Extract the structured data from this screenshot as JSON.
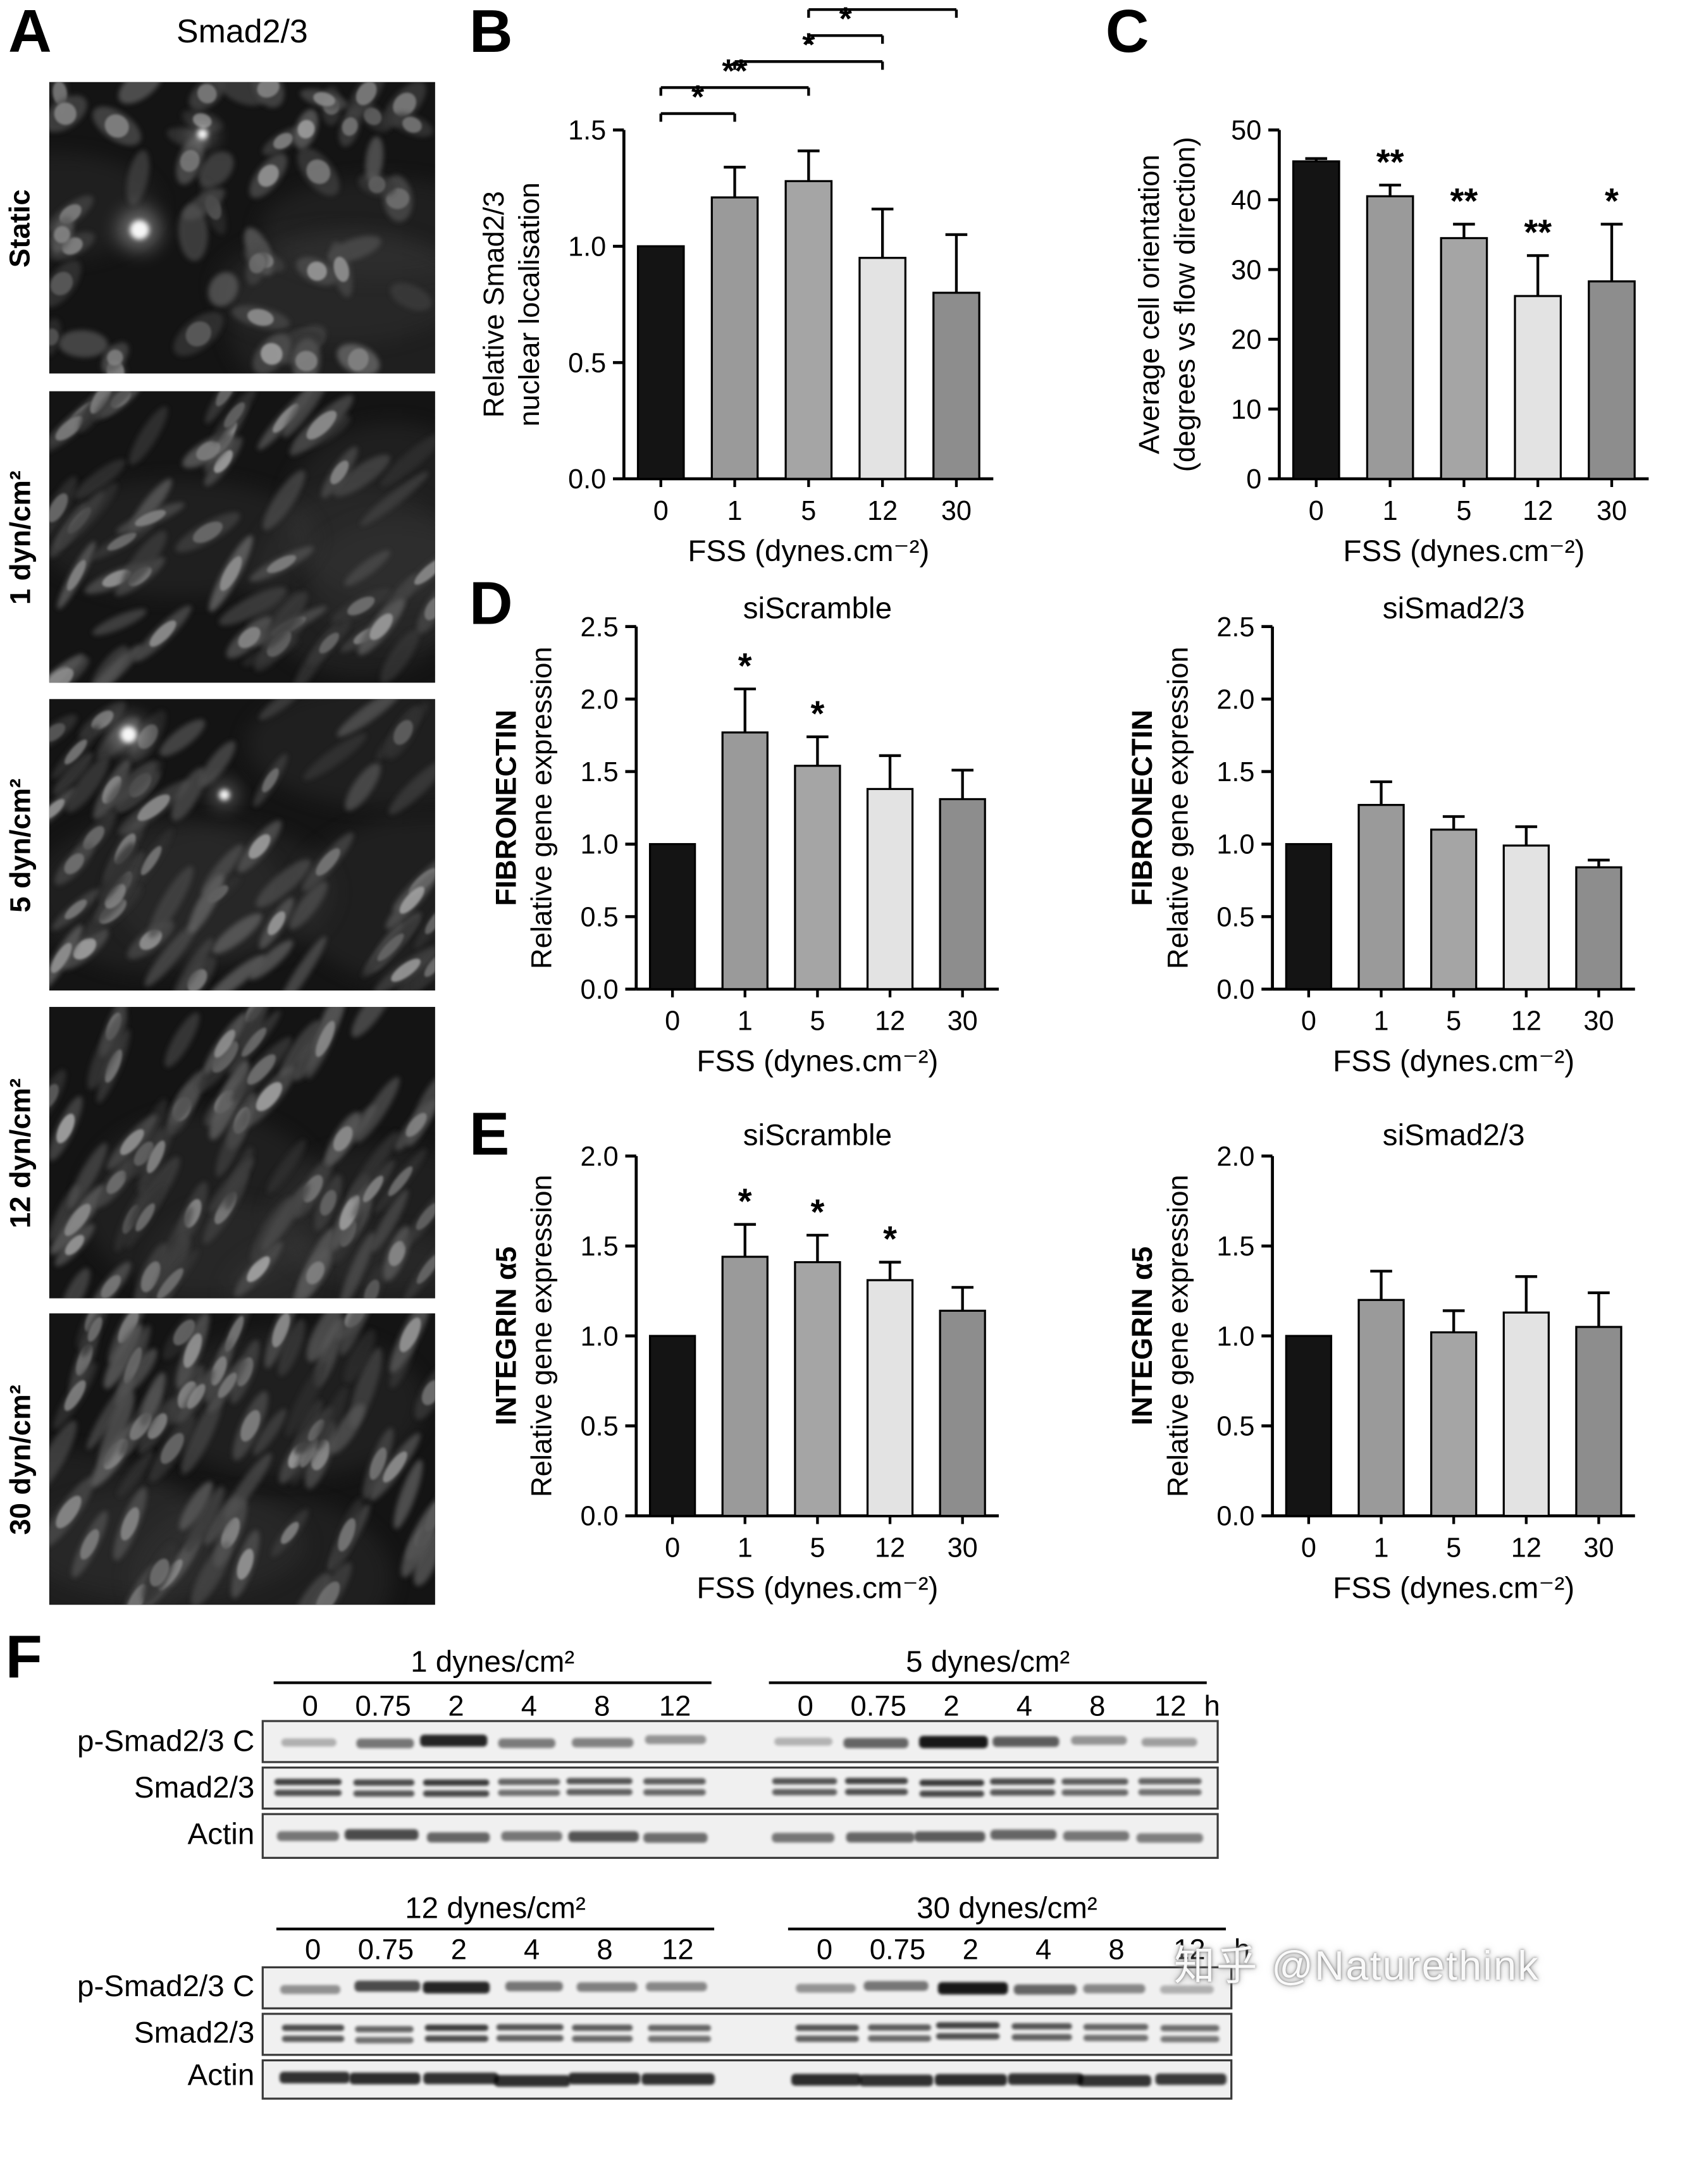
{
  "colors": {
    "bars": [
      "#141414",
      "#9a9a9a",
      "#a5a5a5",
      "#e3e3e3",
      "#8d8d8d"
    ],
    "axis": "#000000"
  },
  "watermark": "知乎 @Naturethink",
  "panelA": {
    "label": "A",
    "title": "Smad2/3",
    "row_labels": [
      "Static",
      "1 dyn/cm²",
      "5 dyn/cm²",
      "12 dyn/cm²",
      "30 dyn/cm²"
    ]
  },
  "panelB": {
    "label": "B"
  },
  "panelC": {
    "label": "C"
  },
  "panelD": {
    "label": "D"
  },
  "panelE": {
    "label": "E"
  },
  "panelF": {
    "label": "F",
    "sets": [
      {
        "groups": [
          {
            "title": "1 dynes/cm²",
            "lanes": [
              "0",
              "0.75",
              "2",
              "4",
              "8",
              "12"
            ]
          },
          {
            "title": "5 dynes/cm²",
            "lanes": [
              "0",
              "0.75",
              "2",
              "4",
              "8",
              "12"
            ]
          }
        ],
        "time_unit": "h",
        "rows": [
          {
            "label": "p-Smad2/3 C",
            "double": false,
            "bands": [
              [
                0.12,
                0.45,
                0.92,
                0.42,
                0.38,
                0.28
              ],
              [
                0.1,
                0.55,
                1.0,
                0.6,
                0.28,
                0.22
              ]
            ]
          },
          {
            "label": "Smad2/3",
            "double": true,
            "bands": [
              [
                0.75,
                0.7,
                0.8,
                0.55,
                0.65,
                0.6
              ],
              [
                0.65,
                0.75,
                0.8,
                0.7,
                0.6,
                0.55
              ]
            ]
          },
          {
            "label": "Actin",
            "double": false,
            "bands": [
              [
                0.45,
                0.7,
                0.55,
                0.45,
                0.65,
                0.5
              ],
              [
                0.45,
                0.55,
                0.6,
                0.55,
                0.45,
                0.4
              ]
            ]
          }
        ]
      },
      {
        "groups": [
          {
            "title": "12 dynes/cm²",
            "lanes": [
              "0",
              "0.75",
              "2",
              "4",
              "8",
              "12"
            ]
          },
          {
            "title": "30 dynes/cm²",
            "lanes": [
              "0",
              "0.75",
              "2",
              "4",
              "8",
              "12"
            ]
          }
        ],
        "time_unit": "h",
        "rows": [
          {
            "label": "p-Smad2/3 C",
            "double": false,
            "bands": [
              [
                0.3,
                0.7,
                0.92,
                0.45,
                0.4,
                0.35
              ],
              [
                0.28,
                0.45,
                1.0,
                0.55,
                0.35,
                0.12
              ]
            ]
          },
          {
            "label": "Smad2/3",
            "double": true,
            "bands": [
              [
                0.7,
                0.55,
                0.78,
                0.65,
                0.6,
                0.55
              ],
              [
                0.65,
                0.6,
                0.75,
                0.65,
                0.55,
                0.5
              ]
            ]
          },
          {
            "label": "Actin",
            "double": false,
            "bands": [
              [
                0.85,
                0.88,
                0.85,
                0.86,
                0.88,
                0.85
              ],
              [
                0.88,
                0.85,
                0.88,
                0.85,
                0.84,
                0.8
              ]
            ]
          }
        ]
      }
    ]
  },
  "chart_data": [
    {
      "id": "smad23-nuclear-localisation",
      "type": "bar",
      "title": "",
      "categories": [
        "0",
        "1",
        "5",
        "12",
        "30"
      ],
      "values": [
        1.0,
        1.21,
        1.28,
        0.95,
        0.8
      ],
      "errors": [
        0,
        0.13,
        0.13,
        0.21,
        0.25
      ],
      "stars": [
        "",
        "",
        "",
        "",
        ""
      ],
      "ylabel_lines": [
        "Relative Smad2/3",
        "nuclear localisation"
      ],
      "ylabel_bold_first": false,
      "xlabel": "FSS (dynes.cm⁻²)",
      "ylim": [
        0,
        1.5
      ],
      "yticks": [
        0,
        0.5,
        1.0,
        1.5
      ],
      "ytick_labels": [
        "0.0",
        "0.5",
        "1.0",
        "1.5"
      ],
      "sig_brackets": [
        {
          "a": 0,
          "b": 1,
          "label": "*"
        },
        {
          "a": 0,
          "b": 2,
          "label": "**"
        },
        {
          "a": 1,
          "b": 3,
          "label": "*"
        },
        {
          "a": 2,
          "b": 3,
          "label": "*"
        },
        {
          "a": 2,
          "b": 4,
          "label": "*"
        }
      ]
    },
    {
      "id": "average-cell-orientation",
      "type": "bar",
      "title": "",
      "categories": [
        "0",
        "1",
        "5",
        "12",
        "30"
      ],
      "values": [
        45.5,
        40.5,
        34.5,
        26.2,
        28.3
      ],
      "errors": [
        0.4,
        1.6,
        2.0,
        5.8,
        8.2
      ],
      "stars": [
        "",
        "**",
        "**",
        "**",
        "*"
      ],
      "ylabel_lines": [
        "Average cell orientation",
        "(degrees vs flow direction)"
      ],
      "ylabel_bold_first": false,
      "xlabel": "FSS (dynes.cm⁻²)",
      "ylim": [
        0,
        50
      ],
      "yticks": [
        0,
        10,
        20,
        30,
        40,
        50
      ],
      "ytick_labels": [
        "0",
        "10",
        "20",
        "30",
        "40",
        "50"
      ]
    },
    {
      "id": "fibronectin-siscramble",
      "type": "bar",
      "title": "siScramble",
      "categories": [
        "0",
        "1",
        "5",
        "12",
        "30"
      ],
      "values": [
        1.0,
        1.77,
        1.54,
        1.38,
        1.31
      ],
      "errors": [
        0,
        0.3,
        0.2,
        0.23,
        0.2
      ],
      "stars": [
        "",
        "*",
        "*",
        "",
        ""
      ],
      "ylabel_lines": [
        "FIBRONECTIN",
        "Relative gene expression"
      ],
      "ylabel_bold_first": true,
      "xlabel": "FSS (dynes.cm⁻²)",
      "ylim": [
        0,
        2.5
      ],
      "yticks": [
        0,
        0.5,
        1.0,
        1.5,
        2.0,
        2.5
      ],
      "ytick_labels": [
        "0.0",
        "0.5",
        "1.0",
        "1.5",
        "2.0",
        "2.5"
      ]
    },
    {
      "id": "fibronectin-sismad23",
      "type": "bar",
      "title": "siSmad2/3",
      "categories": [
        "0",
        "1",
        "5",
        "12",
        "30"
      ],
      "values": [
        1.0,
        1.27,
        1.1,
        0.99,
        0.84
      ],
      "errors": [
        0,
        0.16,
        0.09,
        0.13,
        0.05
      ],
      "stars": [
        "",
        "",
        "",
        "",
        ""
      ],
      "ylabel_lines": [
        "FIBRONECTIN",
        "Relative gene expression"
      ],
      "ylabel_bold_first": true,
      "xlabel": "FSS (dynes.cm⁻²)",
      "ylim": [
        0,
        2.5
      ],
      "yticks": [
        0,
        0.5,
        1.0,
        1.5,
        2.0,
        2.5
      ],
      "ytick_labels": [
        "0.0",
        "0.5",
        "1.0",
        "1.5",
        "2.0",
        "2.5"
      ]
    },
    {
      "id": "integrin-a5-siscramble",
      "type": "bar",
      "title": "siScramble",
      "categories": [
        "0",
        "1",
        "5",
        "12",
        "30"
      ],
      "values": [
        1.0,
        1.44,
        1.41,
        1.31,
        1.14
      ],
      "errors": [
        0,
        0.18,
        0.15,
        0.1,
        0.13
      ],
      "stars": [
        "",
        "*",
        "*",
        "*",
        ""
      ],
      "ylabel_lines": [
        "INTEGRIN α5",
        "Relative gene expression"
      ],
      "ylabel_bold_first": true,
      "xlabel": "FSS (dynes.cm⁻²)",
      "ylim": [
        0,
        2.0
      ],
      "yticks": [
        0,
        0.5,
        1.0,
        1.5,
        2.0
      ],
      "ytick_labels": [
        "0.0",
        "0.5",
        "1.0",
        "1.5",
        "2.0"
      ]
    },
    {
      "id": "integrin-a5-sismad23",
      "type": "bar",
      "title": "siSmad2/3",
      "categories": [
        "0",
        "1",
        "5",
        "12",
        "30"
      ],
      "values": [
        1.0,
        1.2,
        1.02,
        1.13,
        1.05
      ],
      "errors": [
        0,
        0.16,
        0.12,
        0.2,
        0.19
      ],
      "stars": [
        "",
        "",
        "",
        "",
        ""
      ],
      "ylabel_lines": [
        "INTEGRIN α5",
        "Relative gene expression"
      ],
      "ylabel_bold_first": true,
      "xlabel": "FSS (dynes.cm⁻²)",
      "ylim": [
        0,
        2.0
      ],
      "yticks": [
        0,
        0.5,
        1.0,
        1.5,
        2.0
      ],
      "ytick_labels": [
        "0.0",
        "0.5",
        "1.0",
        "1.5",
        "2.0"
      ]
    }
  ]
}
